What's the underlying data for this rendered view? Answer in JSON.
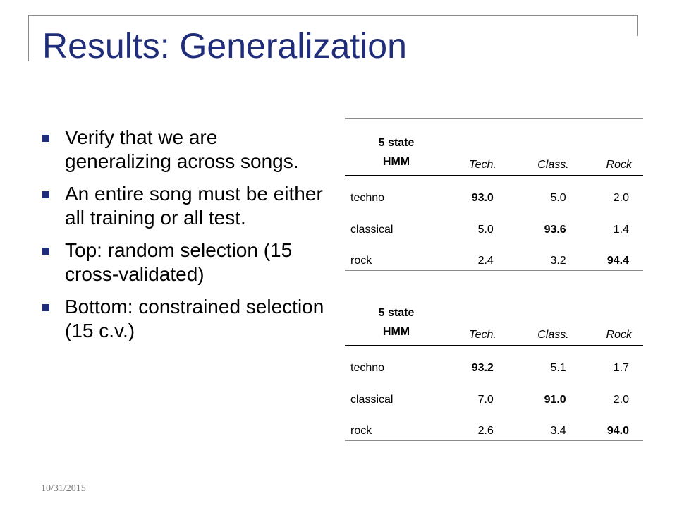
{
  "slide": {
    "title": "Results: Generalization",
    "date": "10/31/2015"
  },
  "bullets": [
    "Verify that we are generalizing across songs.",
    "An entire song must be either all training or all test.",
    "Top: random selection (15 cross-validated)",
    "Bottom: constrained selection (15 c.v.)"
  ],
  "tables": {
    "top": {
      "header": {
        "corner_line1": "5 state",
        "corner_line2": "HMM",
        "cols": [
          "Tech.",
          "Class.",
          "Rock"
        ]
      },
      "rows": [
        {
          "label": "techno",
          "values": [
            "93.0",
            "5.0",
            "2.0"
          ]
        },
        {
          "label": "classical",
          "values": [
            "5.0",
            "93.6",
            "1.4"
          ]
        },
        {
          "label": "rock",
          "values": [
            "2.4",
            "3.2",
            "94.4"
          ]
        }
      ]
    },
    "bottom": {
      "header": {
        "corner_line1": "5 state",
        "corner_line2": "HMM",
        "cols": [
          "Tech.",
          "Class.",
          "Rock"
        ]
      },
      "rows": [
        {
          "label": "techno",
          "values": [
            "93.2",
            "5.1",
            "1.7"
          ]
        },
        {
          "label": "classical",
          "values": [
            "7.0",
            "91.0",
            "2.0"
          ]
        },
        {
          "label": "rock",
          "values": [
            "2.6",
            "3.4",
            "94.0"
          ]
        }
      ]
    }
  }
}
